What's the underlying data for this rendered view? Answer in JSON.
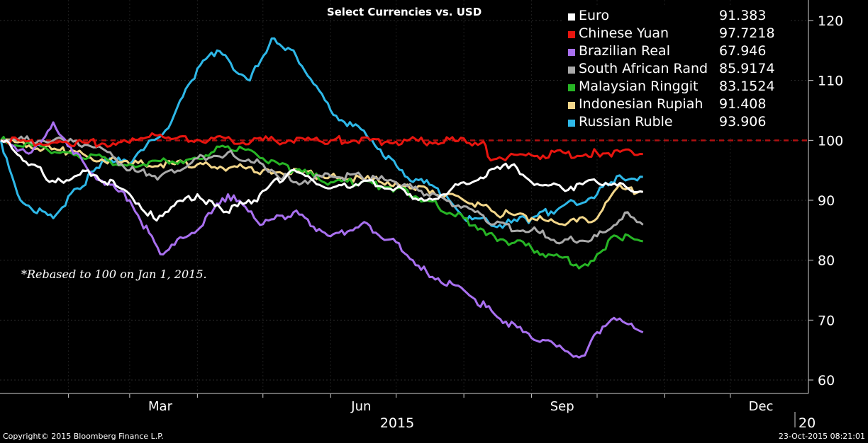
{
  "chart_data": {
    "type": "line",
    "title": "Select Currencies vs. USD",
    "note": "*Rebased to 100 on Jan 1, 2015.",
    "xaxis": {
      "tick_labels": [
        "Mar",
        "Jun",
        "Sep",
        "Dec"
      ],
      "year_label": "2015",
      "next_year_label": "20",
      "range": [
        "2015-01-01",
        "2015-12-31"
      ]
    },
    "yaxis": {
      "ticks": [
        60,
        70,
        80,
        90,
        100,
        110,
        120
      ],
      "ylim": [
        58,
        123
      ],
      "side": "right"
    },
    "reference_line": {
      "value": 100,
      "style": "dashed",
      "color": "#b01010"
    },
    "grid": true,
    "legend_position": "top-right",
    "series": [
      {
        "name": "Euro",
        "last": "91.383",
        "color": "#ffffff",
        "x": [
          "2015-01-01",
          "2015-01-15",
          "2015-01-26",
          "2015-02-10",
          "2015-03-01",
          "2015-03-12",
          "2015-04-01",
          "2015-04-13",
          "2015-04-27",
          "2015-05-14",
          "2015-06-01",
          "2015-06-15",
          "2015-07-01",
          "2015-07-15",
          "2015-08-01",
          "2015-08-24",
          "2015-09-01",
          "2015-09-15",
          "2015-10-01",
          "2015-10-22"
        ],
        "y": [
          100,
          96,
          93,
          95,
          91,
          87,
          91,
          88,
          90,
          95,
          92,
          93,
          92,
          90,
          93,
          96,
          93,
          92,
          93,
          91.383
        ]
      },
      {
        "name": "Chinese Yuan",
        "last": "97.7218",
        "color": "#e8150f",
        "x": [
          "2015-01-01",
          "2015-02-01",
          "2015-03-01",
          "2015-03-10",
          "2015-03-20",
          "2015-05-01",
          "2015-06-01",
          "2015-08-10",
          "2015-08-12",
          "2015-09-01",
          "2015-10-01",
          "2015-10-22"
        ],
        "y": [
          100,
          99.5,
          99.6,
          100.6,
          100.2,
          100,
          100,
          99.8,
          97.3,
          97.5,
          97.9,
          97.7218
        ]
      },
      {
        "name": "Brazilian Real",
        "last": "67.946",
        "color": "#a970f0",
        "x": [
          "2015-01-01",
          "2015-01-15",
          "2015-01-25",
          "2015-02-10",
          "2015-03-01",
          "2015-03-15",
          "2015-04-01",
          "2015-04-15",
          "2015-05-01",
          "2015-05-15",
          "2015-06-01",
          "2015-06-15",
          "2015-07-01",
          "2015-07-15",
          "2015-08-01",
          "2015-08-15",
          "2015-09-01",
          "2015-09-24",
          "2015-10-01",
          "2015-10-10",
          "2015-10-22"
        ],
        "y": [
          100,
          98,
          103,
          95,
          90,
          81,
          85,
          91,
          86,
          88,
          84,
          86,
          83,
          78,
          75,
          71,
          67,
          64,
          68,
          70,
          67.946
        ]
      },
      {
        "name": "South African Rand",
        "last": "85.9174",
        "color": "#aaaaaa",
        "x": [
          "2015-01-01",
          "2015-01-25",
          "2015-02-15",
          "2015-03-01",
          "2015-03-15",
          "2015-04-01",
          "2015-04-15",
          "2015-05-01",
          "2015-05-15",
          "2015-06-01",
          "2015-06-15",
          "2015-07-01",
          "2015-07-15",
          "2015-08-01",
          "2015-08-15",
          "2015-09-01",
          "2015-09-15",
          "2015-10-01",
          "2015-10-15",
          "2015-10-22"
        ],
        "y": [
          100,
          100,
          99,
          95,
          94,
          97,
          98,
          96,
          93,
          94,
          94,
          93,
          91,
          89,
          86,
          85,
          83,
          84,
          88,
          85.9174
        ]
      },
      {
        "name": "Malaysian Ringgit",
        "last": "83.1524",
        "color": "#27b525",
        "x": [
          "2015-01-01",
          "2015-02-01",
          "2015-03-01",
          "2015-04-01",
          "2015-04-15",
          "2015-05-01",
          "2015-05-15",
          "2015-06-01",
          "2015-06-15",
          "2015-07-01",
          "2015-07-15",
          "2015-08-01",
          "2015-08-15",
          "2015-09-01",
          "2015-09-24",
          "2015-10-01",
          "2015-10-10",
          "2015-10-22"
        ],
        "y": [
          100,
          98,
          96,
          97,
          99,
          97,
          95,
          93,
          93,
          92,
          90,
          87,
          84,
          82,
          79,
          81,
          84,
          83.1524
        ]
      },
      {
        "name": "Indonesian Rupiah",
        "last": "91.408",
        "color": "#f2d68a",
        "x": [
          "2015-01-01",
          "2015-02-01",
          "2015-03-01",
          "2015-04-01",
          "2015-05-01",
          "2015-06-01",
          "2015-07-01",
          "2015-07-15",
          "2015-08-01",
          "2015-08-15",
          "2015-09-01",
          "2015-09-15",
          "2015-10-01",
          "2015-10-10",
          "2015-10-22"
        ],
        "y": [
          100,
          98,
          96,
          96,
          95,
          94,
          93,
          92,
          90,
          88,
          87,
          86,
          87,
          92,
          91.408
        ]
      },
      {
        "name": "Russian Ruble",
        "last": "93.906",
        "color": "#2eb8e8",
        "x": [
          "2015-01-01",
          "2015-01-10",
          "2015-01-25",
          "2015-02-05",
          "2015-02-20",
          "2015-03-01",
          "2015-03-20",
          "2015-04-01",
          "2015-04-10",
          "2015-04-25",
          "2015-05-05",
          "2015-05-15",
          "2015-06-01",
          "2015-06-20",
          "2015-07-05",
          "2015-07-20",
          "2015-08-01",
          "2015-08-20",
          "2015-09-01",
          "2015-09-15",
          "2015-10-01",
          "2015-10-10",
          "2015-10-22"
        ],
        "y": [
          100,
          90,
          87,
          92,
          97,
          96,
          103,
          112,
          115,
          110,
          117,
          115,
          105,
          100,
          94,
          92,
          87,
          86,
          87,
          89,
          91,
          94,
          93.906
        ]
      }
    ]
  },
  "footer": {
    "copyright": "Copyright© 2015 Bloomberg Finance L.P.",
    "timestamp": "23-Oct-2015 08:21:01"
  }
}
